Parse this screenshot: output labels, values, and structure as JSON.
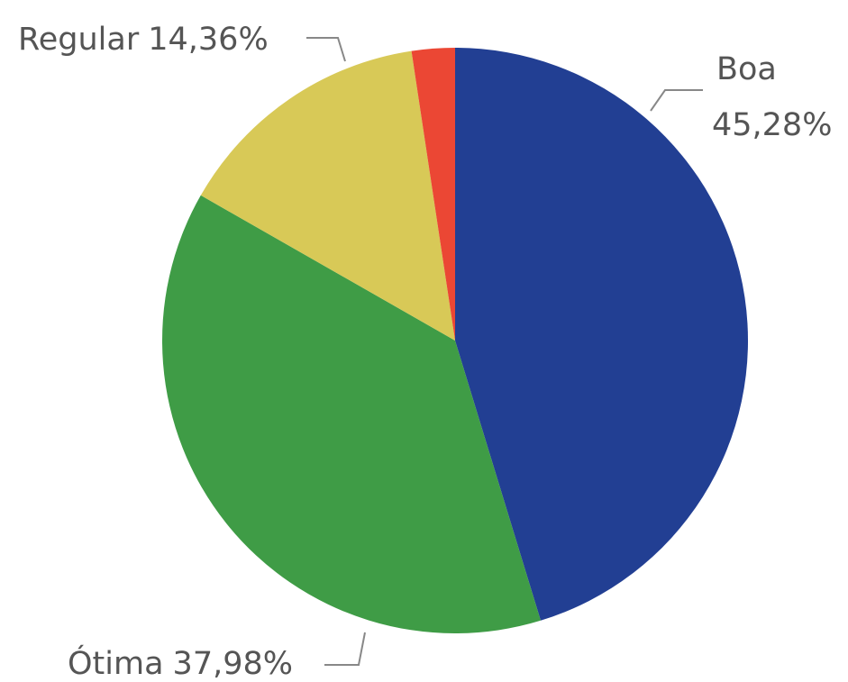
{
  "chart_data": {
    "type": "pie",
    "categories": [
      "Boa",
      "Ótima",
      "Regular",
      null
    ],
    "values": [
      45.28,
      37.98,
      14.36,
      2.38
    ],
    "value_labels": [
      "45,28%",
      "37,98%",
      "14,36%",
      null
    ],
    "colors": [
      "#223f93",
      "#3f9c46",
      "#d8c957",
      "#eb4734"
    ]
  }
}
